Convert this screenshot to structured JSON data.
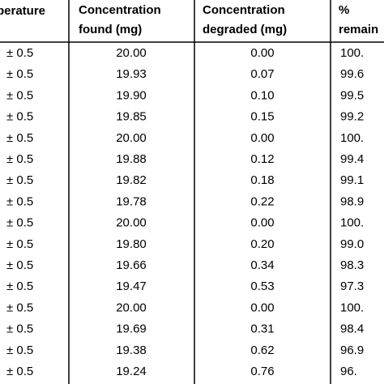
{
  "table": {
    "header": [
      [
        "perature"
      ],
      [
        "Concentration",
        "found (mg)"
      ],
      [
        "Concentration",
        "degraded (mg)"
      ],
      [
        "%",
        "remain"
      ]
    ],
    "rows": [
      [
        "± 0.5",
        "20.00",
        "0.00",
        "100."
      ],
      [
        "± 0.5",
        "19.93",
        "0.07",
        "99.6"
      ],
      [
        "± 0.5",
        "19.90",
        "0.10",
        "99.5"
      ],
      [
        "± 0.5",
        "19.85",
        "0.15",
        "99.2"
      ],
      [
        "± 0.5",
        "20.00",
        "0.00",
        "100."
      ],
      [
        "± 0.5",
        "19.88",
        "0.12",
        "99.4"
      ],
      [
        "± 0.5",
        "19.82",
        "0.18",
        "99.1"
      ],
      [
        "± 0.5",
        "19.78",
        "0.22",
        "98.9"
      ],
      [
        "± 0.5",
        "20.00",
        "0.00",
        "100."
      ],
      [
        "± 0.5",
        "19.80",
        "0.20",
        "99.0"
      ],
      [
        "± 0.5",
        "19.66",
        "0.34",
        "98.3"
      ],
      [
        "± 0.5",
        "19.47",
        "0.53",
        "97.3"
      ],
      [
        "± 0.5",
        "20.00",
        "0.00",
        "100."
      ],
      [
        "± 0.5",
        "19.69",
        "0.31",
        "98.4"
      ],
      [
        "± 0.5",
        "19.38",
        "0.62",
        "96.9"
      ],
      [
        "± 0.5",
        "19.24",
        "0.76",
        "96."
      ]
    ]
  }
}
